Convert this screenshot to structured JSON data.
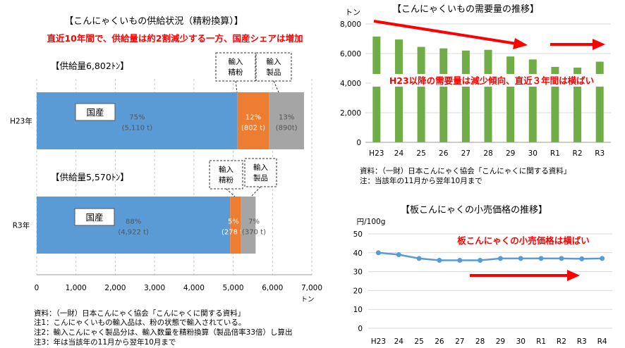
{
  "chart_data": [
    {
      "type": "bar",
      "title": "【こんにゃくいもの供給状況（精粉換算）】",
      "subtitle": "直近10年間で、供給量は約2割減少する一方、国産シェアは増加",
      "xlabel": "トン",
      "xlim": [
        0,
        7000
      ],
      "xticks": [
        "0",
        "1,000",
        "2,000",
        "3,000",
        "4,000",
        "5,000",
        "6,000",
        "7,000"
      ],
      "stacked": true,
      "categories": [
        "H23年",
        "R3年"
      ],
      "totals": [
        "【供給量6,802ﾄﾝ】",
        "【供給量5,570ﾄﾝ】"
      ],
      "series": [
        {
          "name": "国産",
          "color": "#5b9bd5",
          "values": [
            5110,
            4922
          ],
          "labels": [
            [
              "75%",
              "(5,110 t)"
            ],
            [
              "88%",
              "(4,922 t)"
            ]
          ]
        },
        {
          "name": "輸入精粉",
          "color": "#ed7d31",
          "values": [
            802,
            278
          ],
          "labels": [
            [
              "12%",
              "(802 t)"
            ],
            [
              "5%",
              "(278 t)"
            ]
          ]
        },
        {
          "name": "輸入製品",
          "color": "#a5a5a5",
          "values": [
            890,
            370
          ],
          "labels": [
            [
              "13%",
              "(890t)"
            ],
            [
              "7%",
              "(370 t)"
            ]
          ]
        }
      ],
      "callouts": {
        "domestic": "国産",
        "import_powder": [
          "輸入",
          "精粉"
        ],
        "import_product": [
          "輸入",
          "製品"
        ]
      },
      "notes": [
        "資料：（一財）日本こんにゃく協会「こんにゃくに関する資料」",
        "注1：こんにゃくいもの輸入品は、粉の状態で輸入されている。",
        "注2：輸入こんにゃく製品分は、輸入数量を精粉換算（製品倍率33倍）し算出",
        "注3：年は当該年の11月から翌年10月まで"
      ]
    },
    {
      "type": "bar",
      "title": "【こんにゃくいもの需要量の推移】",
      "ylabel": "トン",
      "ylim": [
        0,
        8000
      ],
      "yticks": [
        "0",
        "2,000",
        "4,000",
        "6,000",
        "8,000"
      ],
      "categories": [
        "H23",
        "24",
        "25",
        "26",
        "27",
        "28",
        "29",
        "30",
        "R1",
        "R2",
        "R3"
      ],
      "values": [
        7150,
        6950,
        6450,
        6350,
        6200,
        6250,
        5800,
        5600,
        5100,
        5050,
        5450
      ],
      "color": "#70ad47",
      "annotation": "H23以降の需要量は減少傾向、直近３年間は横ばい",
      "notes": [
        "資料：（一財）日本こんにゃく協会「こんにゃくに関する資料」",
        "注：当該年の11月から翌年10月まで"
      ]
    },
    {
      "type": "line",
      "title": "【板こんにゃくの小売価格の推移】",
      "ylabel": "円/100g",
      "ylim": [
        0,
        50
      ],
      "yticks": [
        "0",
        "10",
        "20",
        "30",
        "40",
        "50"
      ],
      "categories": [
        "H23",
        "24",
        "25",
        "26",
        "27",
        "28",
        "29",
        "30",
        "R1",
        "R2",
        "R3",
        "R4"
      ],
      "values": [
        40,
        39,
        37,
        36,
        36,
        36,
        37,
        37,
        37,
        37,
        36.8,
        37
      ],
      "color": "#5b9bd5",
      "annotation": "板こんにゃくの小売価格は横ばい"
    }
  ],
  "colors": {
    "accent_red": "#ff0000",
    "axis": "#d9d9d9",
    "text": "#000000"
  }
}
